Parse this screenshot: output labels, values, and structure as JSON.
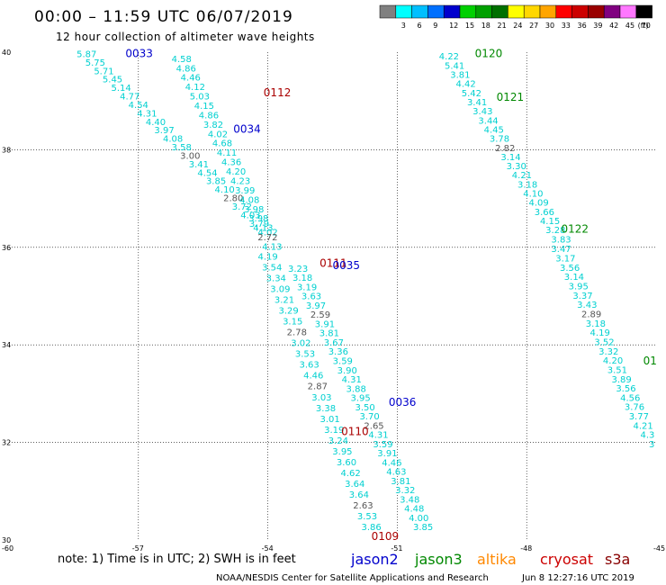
{
  "title": "00:00 – 11:59 UTC 06/07/2019",
  "subtitle": "12 hour collection of altimeter wave heights",
  "legend": {
    "unit": "(ft)",
    "bins": [
      {
        "label": "",
        "color": "#808080"
      },
      {
        "label": "3",
        "color": "#00ffff"
      },
      {
        "label": "6",
        "color": "#00bfff"
      },
      {
        "label": "9",
        "color": "#0070ff"
      },
      {
        "label": "12",
        "color": "#0000cd"
      },
      {
        "label": "15",
        "color": "#00d000"
      },
      {
        "label": "18",
        "color": "#00a000"
      },
      {
        "label": "21",
        "color": "#007000"
      },
      {
        "label": "24",
        "color": "#ffff00"
      },
      {
        "label": "27",
        "color": "#ffd700"
      },
      {
        "label": "30",
        "color": "#ffa500"
      },
      {
        "label": "33",
        "color": "#ff0000"
      },
      {
        "label": "36",
        "color": "#cc0000"
      },
      {
        "label": "39",
        "color": "#990000"
      },
      {
        "label": "42",
        "color": "#800080"
      },
      {
        "label": "45",
        "color": "#ff77ff"
      },
      {
        "label": "70",
        "color": "#000000"
      }
    ]
  },
  "map": {
    "lon_range": [
      -60,
      -45
    ],
    "lat_range": [
      30,
      40
    ],
    "lon_ticks": [
      "-60",
      "-57",
      "-54",
      "-51",
      "-48",
      "-45"
    ],
    "lat_ticks": [
      "40",
      "38",
      "36",
      "34",
      "32",
      "30"
    ]
  },
  "colors": {
    "low": "#00d0d0",
    "gray": "#555555",
    "jason2": "#0000cc",
    "jason3": "#008800",
    "altika": "#ff8800",
    "cryosat": "#aa0000",
    "s3a": "#880000"
  },
  "passes": [
    {
      "label": "0033",
      "lon": -57.3,
      "lat": 39.9,
      "color": "#0000cc"
    },
    {
      "label": "0112",
      "lon": -54.1,
      "lat": 39.1,
      "color": "#aa0000"
    },
    {
      "label": "0034",
      "lon": -54.8,
      "lat": 38.35,
      "color": "#0000cc"
    },
    {
      "label": "0111",
      "lon": -52.8,
      "lat": 35.6,
      "color": "#aa0000"
    },
    {
      "label": "0035",
      "lon": -52.5,
      "lat": 35.55,
      "color": "#0000cc"
    },
    {
      "label": "0036",
      "lon": -51.2,
      "lat": 32.75,
      "color": "#0000cc"
    },
    {
      "label": "0110",
      "lon": -52.3,
      "lat": 32.15,
      "color": "#aa0000"
    },
    {
      "label": "0109",
      "lon": -51.6,
      "lat": 30.0,
      "color": "#aa0000"
    },
    {
      "label": "0120",
      "lon": -49.2,
      "lat": 39.9,
      "color": "#008800"
    },
    {
      "label": "0121",
      "lon": -48.7,
      "lat": 39.0,
      "color": "#008800"
    },
    {
      "label": "0122",
      "lon": -47.2,
      "lat": 36.3,
      "color": "#008800"
    },
    {
      "label": "01",
      "lon": -45.3,
      "lat": 33.6,
      "color": "#008800"
    }
  ],
  "tracks": [
    {
      "name": "t1",
      "start": [
        -58.2,
        39.9
      ],
      "end": [
        -54.0,
        36.25
      ],
      "values": [
        "5.87",
        "5.75",
        "5.71",
        "5.45",
        "5.14",
        "4.77",
        "4.54",
        "4.31",
        "4.40",
        "3.97",
        "4.08",
        "3.58",
        "3.00",
        "3.41",
        "4.54",
        "3.85",
        "4.10",
        "2.80",
        "3.72",
        "4.03",
        "3.79",
        "4.02"
      ]
    },
    {
      "name": "t2",
      "start": [
        -56.0,
        39.8
      ],
      "end": [
        -53.9,
        35.95
      ],
      "values": [
        "4.58",
        "4.86",
        "4.46",
        "4.12",
        "5.03",
        "4.15",
        "4.86",
        "3.82",
        "4.02",
        "4.68",
        "4.11",
        "4.36",
        "4.20",
        "4.23",
        "3.99",
        "4.08",
        "3.98",
        "3.98",
        "4.13",
        "2.72",
        "4.13"
      ]
    },
    {
      "name": "t3",
      "start": [
        -54.0,
        35.75
      ],
      "end": [
        -51.6,
        30.2
      ],
      "values": [
        "4.19",
        "3.54",
        "3.34",
        "3.09",
        "3.21",
        "3.29",
        "3.15",
        "2.78",
        "3.02",
        "3.53",
        "3.63",
        "4.46",
        "2.87",
        "3.03",
        "3.38",
        "3.01",
        "3.19",
        "3.24",
        "3.95",
        "3.60",
        "4.62",
        "3.64",
        "3.64",
        "2.63",
        "3.53",
        "3.86"
      ]
    },
    {
      "name": "t4",
      "start": [
        -53.3,
        35.5
      ],
      "end": [
        -50.4,
        30.2
      ],
      "values": [
        "3.23",
        "3.18",
        "3.19",
        "3.63",
        "3.97",
        "2.59",
        "3.91",
        "3.81",
        "3.67",
        "3.36",
        "3.59",
        "3.90",
        "4.31",
        "3.88",
        "3.95",
        "3.50",
        "3.70",
        "2.65",
        "4.31",
        "3.59",
        "3.91",
        "4.46",
        "4.63",
        "3.81",
        "3.32",
        "3.48",
        "4.48",
        "4.00",
        "3.85"
      ]
    },
    {
      "name": "t5",
      "start": [
        -49.8,
        39.85
      ],
      "end": [
        -47.2,
        36.1
      ],
      "values": [
        "4.22",
        "5.41",
        "3.81",
        "4.42",
        "5.42",
        "3.41",
        "3.43",
        "3.44",
        "4.45",
        "3.78",
        "2.82",
        "3.14",
        "3.30",
        "4.21",
        "3.18",
        "4.10",
        "4.09",
        "3.66",
        "4.15",
        "3.28",
        "3.83"
      ]
    },
    {
      "name": "t6",
      "start": [
        -47.2,
        35.9
      ],
      "end": [
        -45.1,
        31.9
      ],
      "values": [
        "3.47",
        "3.17",
        "3.56",
        "3.14",
        "3.95",
        "3.37",
        "3.43",
        "2.89",
        "3.18",
        "4.19",
        "3.52",
        "3.32",
        "4.20",
        "3.51",
        "3.89",
        "3.56",
        "4.56",
        "3.76",
        "3.77",
        "4.21",
        "4.3",
        "3"
      ]
    }
  ],
  "gray_values": [
    "3.00",
    "2.80",
    "2.72",
    "2.78",
    "2.87",
    "2.63",
    "2.59",
    "2.65",
    "2.82",
    "2.89"
  ],
  "note": "note: 1) Time is in UTC; 2) SWH is in feet",
  "satellites": [
    {
      "name": "jason2",
      "color": "#0000cc"
    },
    {
      "name": "jason3",
      "color": "#008800"
    },
    {
      "name": "altika",
      "color": "#ff8800"
    },
    {
      "name": "cryosat",
      "color": "#cc0000"
    },
    {
      "name": "s3a",
      "color": "#880000"
    }
  ],
  "footer": {
    "credit": "NOAA/NESDIS Center for Satellite Applications and Research",
    "timestamp": "Jun  8 12:27:16 UTC 2019"
  }
}
